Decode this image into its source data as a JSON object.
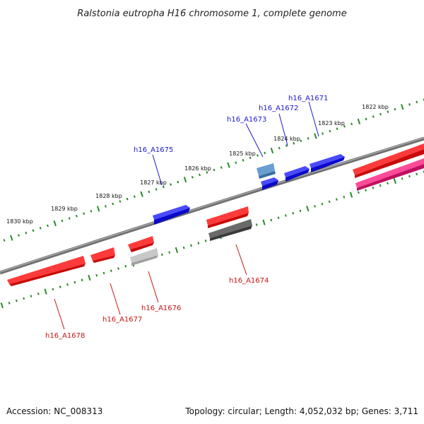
{
  "title": "Ralstonia eutropha H16 chromosome 1, complete genome",
  "accession_text": "Accession: NC_008313",
  "summary_text": "Topology: circular; Length: 4,052,032 bp; Genes: 3,711",
  "colors": {
    "backbone": "#7a7a7a",
    "ticks": "#2a8a2a",
    "forward_label": "#1a1acc",
    "reverse_label": "#cc1111",
    "blue_gene": "#1010e0",
    "steel_gene": "#5b8fc4",
    "red_gene": "#e01010",
    "pink_gene": "#e0207a",
    "dark_gray_gene": "#555555",
    "light_gray_gene": "#bbbbbb"
  },
  "kbp_ticks": [
    "1822 kbp",
    "1823 kbp",
    "1824 kbp",
    "1825 kbp",
    "1826 kbp",
    "1827 kbp",
    "1828 kbp",
    "1829 kbp",
    "1830 kbp"
  ],
  "genes": [
    {
      "label": "h16_A1671",
      "strand": "forward"
    },
    {
      "label": "h16_A1672",
      "strand": "forward"
    },
    {
      "label": "h16_A1673",
      "strand": "forward"
    },
    {
      "label": "h16_A1675",
      "strand": "forward"
    },
    {
      "label": "h16_A1674",
      "strand": "reverse"
    },
    {
      "label": "h16_A1676",
      "strand": "reverse"
    },
    {
      "label": "h16_A1677",
      "strand": "reverse"
    },
    {
      "label": "h16_A1678",
      "strand": "reverse"
    }
  ]
}
